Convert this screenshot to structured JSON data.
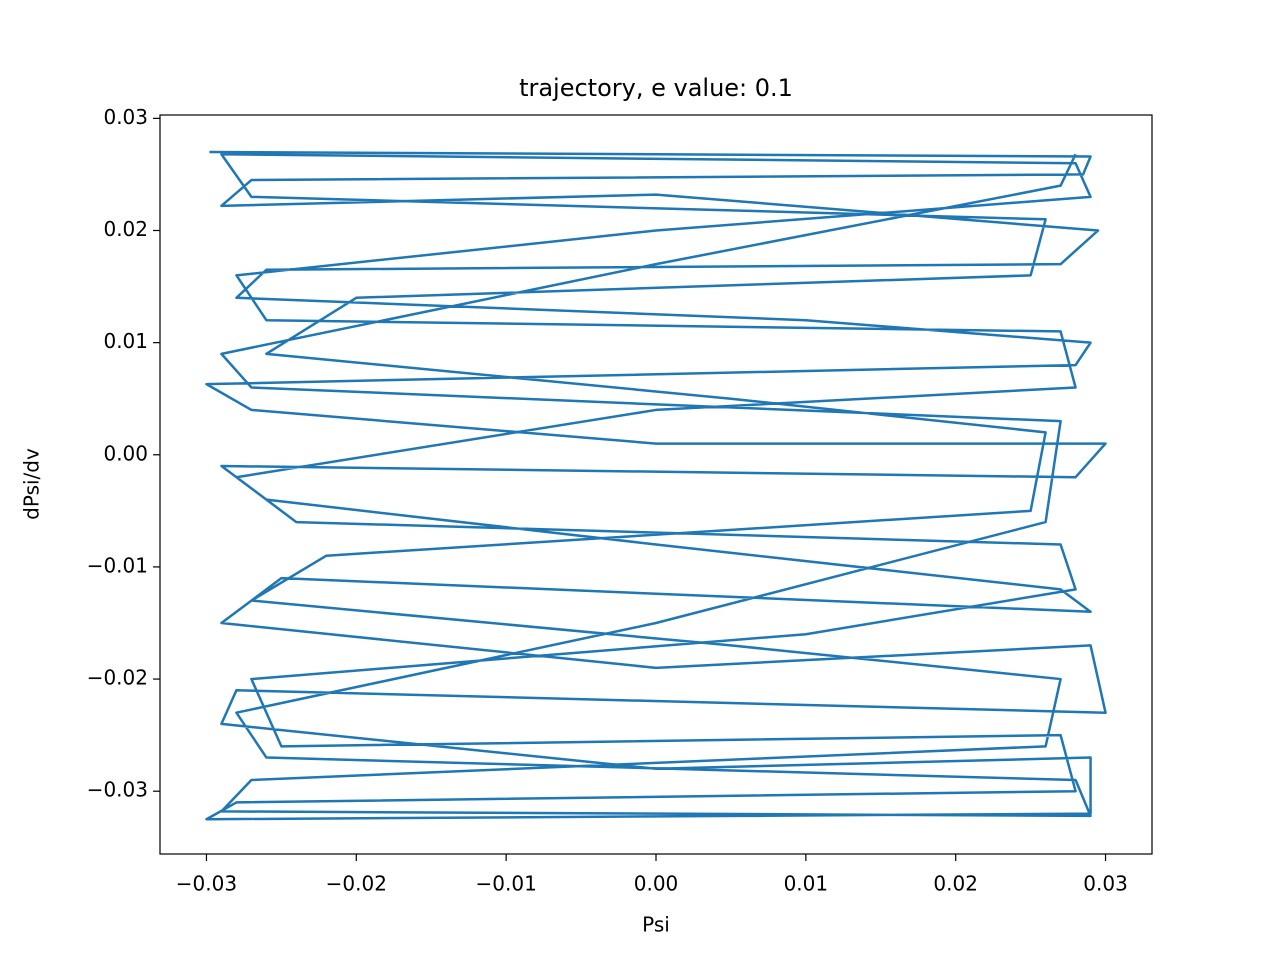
{
  "chart_data": {
    "type": "line",
    "title": "trajectory, e value: 0.1",
    "x_label": "Psi",
    "y_label": "dPsi/dv",
    "xlim": [
      -0.0331,
      0.0331
    ],
    "ylim": [
      -0.0356,
      0.0303
    ],
    "xticks": [
      {
        "value": -0.03,
        "label": "−0.03"
      },
      {
        "value": -0.02,
        "label": "−0.02"
      },
      {
        "value": -0.01,
        "label": "−0.01"
      },
      {
        "value": 0,
        "label": "0.00"
      },
      0.01,
      0.02,
      0.03
    ],
    "yticks": [
      {
        "value": -0.03,
        "label": "−0.03"
      },
      {
        "value": -0.02,
        "label": "−0.02"
      },
      {
        "value": -0.01,
        "label": "−0.01"
      },
      {
        "value": 0,
        "label": "0.00"
      },
      0.01,
      0.02,
      0.03
    ],
    "grid": false,
    "series": [
      {
        "color": "#1f77b4",
        "x": [
          -0.0298,
          0.029,
          0.0285,
          -0.027,
          -0.029,
          0.0,
          0.0295,
          0.027,
          -0.026,
          -0.028,
          0.01,
          0.029,
          0.028,
          -0.03,
          -0.027,
          0.0,
          0.03,
          0.028,
          -0.029,
          -0.026,
          0.0,
          0.027,
          0.029,
          -0.025,
          -0.029,
          0.0,
          0.029,
          0.03,
          -0.028,
          -0.029,
          0.0,
          0.029,
          0.029,
          -0.03,
          -0.028,
          0.028,
          0.027,
          -0.025,
          -0.027,
          0.01,
          0.028,
          0.027,
          -0.024,
          -0.028,
          0.0,
          0.028,
          0.027,
          -0.026,
          -0.028,
          0.0,
          0.029,
          0.028,
          -0.029,
          -0.027,
          0.026,
          0.025,
          -0.02,
          -0.026,
          0.005,
          0.026,
          0.025,
          -0.022,
          -0.027,
          0.005,
          0.027,
          0.026,
          -0.027,
          -0.029,
          0.029,
          0.028,
          -0.026,
          -0.028,
          0.0,
          0.026,
          0.027,
          -0.027,
          -0.029,
          0.0,
          0.027,
          0.028
        ],
        "values": [
          0.027,
          0.0266,
          0.025,
          0.0245,
          0.0222,
          0.0232,
          0.02,
          0.017,
          0.0165,
          0.014,
          0.012,
          0.01,
          0.008,
          0.0063,
          0.004,
          0.001,
          0.001,
          -0.002,
          -0.001,
          -0.004,
          -0.008,
          -0.012,
          -0.014,
          -0.011,
          -0.015,
          -0.019,
          -0.017,
          -0.023,
          -0.021,
          -0.024,
          -0.028,
          -0.027,
          -0.032,
          -0.0325,
          -0.031,
          -0.03,
          -0.025,
          -0.026,
          -0.02,
          -0.016,
          -0.012,
          -0.008,
          -0.006,
          -0.002,
          0.004,
          0.006,
          0.011,
          0.012,
          0.016,
          0.02,
          0.023,
          0.026,
          0.0268,
          0.023,
          0.021,
          0.016,
          0.014,
          0.009,
          0.005,
          0.002,
          -0.005,
          -0.009,
          -0.013,
          -0.017,
          -0.02,
          -0.026,
          -0.029,
          -0.0318,
          -0.0322,
          -0.029,
          -0.027,
          -0.023,
          -0.015,
          -0.006,
          0.003,
          0.006,
          0.009,
          0.017,
          0.024,
          0.0268
        ]
      }
    ]
  }
}
